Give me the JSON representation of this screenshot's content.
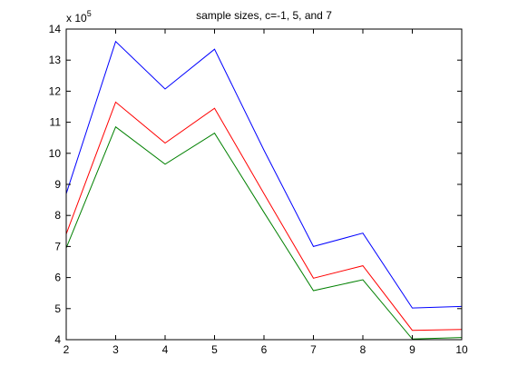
{
  "chart_data": {
    "type": "line",
    "title": "sample sizes, c=-1, 5, and 7",
    "xlabel": "",
    "ylabel": "",
    "x": [
      2,
      3,
      4,
      5,
      6,
      7,
      8,
      9,
      10
    ],
    "xlim": [
      2,
      10
    ],
    "ylim": [
      4,
      14
    ],
    "xticks": [
      "2",
      "3",
      "4",
      "5",
      "6",
      "7",
      "8",
      "9",
      "10"
    ],
    "yticks": [
      "4",
      "5",
      "6",
      "7",
      "8",
      "9",
      "10",
      "11",
      "12",
      "13",
      "14"
    ],
    "y_multiplier_base": "x 10",
    "y_multiplier_exponent": "5",
    "grid": false,
    "legend": "none",
    "series": [
      {
        "color": "#0000ff",
        "values": [
          8.7,
          13.6,
          12.07,
          13.35,
          10.1,
          7.0,
          7.43,
          5.02,
          5.07
        ]
      },
      {
        "color": "#ff0000",
        "values": [
          7.4,
          11.65,
          10.33,
          11.45,
          8.7,
          5.98,
          6.38,
          4.3,
          4.33
        ]
      },
      {
        "color": "#008000",
        "values": [
          6.95,
          10.85,
          9.65,
          10.65,
          8.1,
          5.58,
          5.93,
          4.02,
          4.07
        ]
      }
    ]
  }
}
